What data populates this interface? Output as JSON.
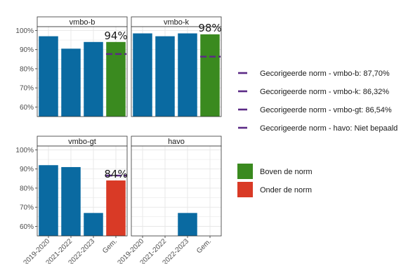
{
  "chart_data": {
    "type": "bar",
    "categories": [
      "2019-2020",
      "2021-2022",
      "2022-2023",
      "Gem."
    ],
    "ylim": [
      55,
      102
    ],
    "y_ticks": [
      60,
      70,
      80,
      90,
      100
    ],
    "y_tick_labels": [
      "60%",
      "70%",
      "80%",
      "90%",
      "100%"
    ],
    "grid": true,
    "legend_position": "right",
    "colors": {
      "bar": "#0a6aa1",
      "boven": "#3a8a1f",
      "onder": "#d93a26",
      "norm": "#5b2a86"
    },
    "facets": [
      {
        "title": "vmbo-b",
        "values": [
          97,
          90.5,
          94,
          94
        ],
        "gem_status": "boven",
        "norm": 87.7,
        "callout": "94%"
      },
      {
        "title": "vmbo-k",
        "values": [
          98.5,
          97,
          98.5,
          98
        ],
        "gem_status": "boven",
        "norm": 86.32,
        "callout": "98%"
      },
      {
        "title": "vmbo-gt",
        "values": [
          92,
          91,
          67,
          84
        ],
        "gem_status": "onder",
        "norm": 86.54,
        "callout": "84%"
      },
      {
        "title": "havo",
        "values": [
          null,
          null,
          67,
          null
        ],
        "gem_status": null,
        "norm": null,
        "callout": ""
      }
    ],
    "legend": {
      "norm_entries": [
        "Gecorigeerde norm - vmbo-b: 87,70%",
        "Gecorigeerde norm - vmbo-k: 86,32%",
        "Gecorigeerde norm - vmbo-gt: 86,54%",
        "Gecorigeerde norm - havo: Niet bepaald"
      ],
      "status_entries": [
        {
          "label": "Boven de norm",
          "color": "#3a8a1f"
        },
        {
          "label": "Onder de norm",
          "color": "#d93a26"
        }
      ]
    }
  }
}
